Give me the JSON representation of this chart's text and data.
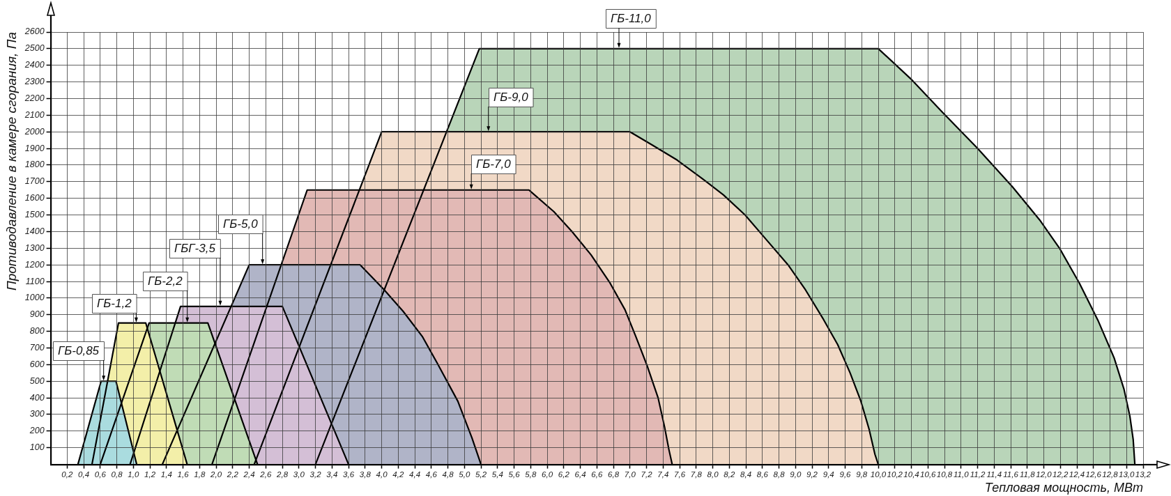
{
  "chart_data": {
    "type": "area",
    "xlabel": "Тепловая мощность, МВт",
    "ylabel": "Противодавление в камере сгорания, Па",
    "xlim": [
      0,
      13.2
    ],
    "ylim": [
      0,
      2600
    ],
    "xticks": [
      {
        "value": 0.2,
        "label": "0,2"
      },
      {
        "value": 0.4,
        "label": "0,4"
      },
      {
        "value": 0.6,
        "label": "0,6"
      },
      {
        "value": 0.8,
        "label": "0,8"
      },
      {
        "value": 1,
        "label": "1,0"
      },
      {
        "value": 1.2,
        "label": "1,2"
      },
      {
        "value": 1.4,
        "label": "1,4"
      },
      {
        "value": 1.6,
        "label": "1,6"
      },
      {
        "value": 1.8,
        "label": "1,8"
      },
      {
        "value": 2,
        "label": "2,0"
      },
      {
        "value": 2.2,
        "label": "2,2"
      },
      {
        "value": 2.4,
        "label": "2,4"
      },
      {
        "value": 2.6,
        "label": "2,6"
      },
      {
        "value": 2.8,
        "label": "2,8"
      },
      {
        "value": 3,
        "label": "3,0"
      },
      {
        "value": 3.2,
        "label": "3,2"
      },
      {
        "value": 3.4,
        "label": "3,4"
      },
      {
        "value": 3.6,
        "label": "3,6"
      },
      {
        "value": 3.8,
        "label": "3,8"
      },
      {
        "value": 4,
        "label": "4,0"
      },
      {
        "value": 4.2,
        "label": "4,2"
      },
      {
        "value": 4.4,
        "label": "4,4"
      },
      {
        "value": 4.6,
        "label": "4,6"
      },
      {
        "value": 4.8,
        "label": "4,8"
      },
      {
        "value": 5,
        "label": "5,0"
      },
      {
        "value": 5.2,
        "label": "5,2"
      },
      {
        "value": 5.4,
        "label": "5,4"
      },
      {
        "value": 5.6,
        "label": "5,6"
      },
      {
        "value": 5.8,
        "label": "5,8"
      },
      {
        "value": 6,
        "label": "6,0"
      },
      {
        "value": 6.2,
        "label": "6,2"
      },
      {
        "value": 6.4,
        "label": "6,4"
      },
      {
        "value": 6.6,
        "label": "6,6"
      },
      {
        "value": 6.8,
        "label": "6,8"
      },
      {
        "value": 7,
        "label": "7,0"
      },
      {
        "value": 7.2,
        "label": "7,2"
      },
      {
        "value": 7.4,
        "label": "7,4"
      },
      {
        "value": 7.6,
        "label": "7,6"
      },
      {
        "value": 7.8,
        "label": "7,8"
      },
      {
        "value": 8,
        "label": "8,0"
      },
      {
        "value": 8.2,
        "label": "8,2"
      },
      {
        "value": 8.4,
        "label": "8,4"
      },
      {
        "value": 8.6,
        "label": "8,6"
      },
      {
        "value": 8.8,
        "label": "8,8"
      },
      {
        "value": 9,
        "label": "9,0"
      },
      {
        "value": 9.2,
        "label": "9,2"
      },
      {
        "value": 9.4,
        "label": "9,4"
      },
      {
        "value": 9.6,
        "label": "9,6"
      },
      {
        "value": 9.8,
        "label": "9,8"
      },
      {
        "value": 10,
        "label": "10,0"
      },
      {
        "value": 10.2,
        "label": "10,2"
      },
      {
        "value": 10.4,
        "label": "10,4"
      },
      {
        "value": 10.6,
        "label": "10,6"
      },
      {
        "value": 10.8,
        "label": "10,8"
      },
      {
        "value": 11,
        "label": "11,0"
      },
      {
        "value": 11.2,
        "label": "11,2"
      },
      {
        "value": 11.4,
        "label": "11,4"
      },
      {
        "value": 11.6,
        "label": "11,6"
      },
      {
        "value": 11.8,
        "label": "11,8"
      },
      {
        "value": 12,
        "label": "12,0"
      },
      {
        "value": 12.2,
        "label": "12,2"
      },
      {
        "value": 12.4,
        "label": "12,4"
      },
      {
        "value": 12.6,
        "label": "12,6"
      },
      {
        "value": 12.8,
        "label": "12,8"
      },
      {
        "value": 13,
        "label": "13,0"
      },
      {
        "value": 13.2,
        "label": "13,2"
      }
    ],
    "yticks": [
      100,
      200,
      300,
      400,
      500,
      600,
      700,
      800,
      900,
      1000,
      1100,
      1200,
      1300,
      1400,
      1500,
      1600,
      1700,
      1800,
      1900,
      2000,
      2100,
      2200,
      2300,
      2400,
      2500,
      2600
    ],
    "grid": true,
    "series": [
      {
        "name": "ГБ-0,85",
        "color": "#aadcdf",
        "x": [
          0.33,
          0.61,
          0.79,
          1.04
        ],
        "values": [
          0,
          500,
          500,
          0
        ]
      },
      {
        "name": "ГБ-1,2",
        "color": "#f3efa9",
        "x": [
          0.5,
          0.82,
          1.15,
          1.65
        ],
        "values": [
          0,
          850,
          850,
          0
        ]
      },
      {
        "name": "ГБ-2,2",
        "color": "#c0dcb6",
        "x": [
          0.6,
          1.19,
          1.9,
          2.5
        ],
        "values": [
          0,
          850,
          850,
          0
        ]
      },
      {
        "name": "ГБГ-3,5",
        "color": "#d4bfd6",
        "x": [
          0.96,
          1.57,
          2.8,
          3.6
        ],
        "values": [
          0,
          950,
          950,
          0
        ]
      },
      {
        "name": "ГБ-5,0",
        "color": "#b0b4c8",
        "x": [
          1.35,
          2.4,
          3.74,
          4.03,
          4.26,
          4.49,
          4.67,
          4.92,
          5.09,
          5.2
        ],
        "values": [
          0,
          1200,
          1200,
          1050,
          920,
          770,
          610,
          380,
          160,
          0
        ]
      },
      {
        "name": "ГБ-7,0",
        "color": "#e2b9b5",
        "x": [
          1.95,
          3.1,
          5.78,
          6.08,
          6.3,
          6.53,
          6.76,
          6.94,
          7.07,
          7.21,
          7.34,
          7.42,
          7.47,
          7.51
        ],
        "values": [
          0,
          1650,
          1650,
          1520,
          1400,
          1260,
          1090,
          930,
          770,
          590,
          400,
          220,
          90,
          0
        ]
      },
      {
        "name": "ГБ-9,0",
        "color": "#f1d9c6",
        "x": [
          2.46,
          4,
          7,
          7.27,
          7.57,
          7.87,
          8.13,
          8.39,
          8.65,
          8.91,
          9.12,
          9.34,
          9.51,
          9.66,
          9.79,
          9.89,
          9.96,
          10
        ],
        "values": [
          0,
          2000,
          2000,
          1920,
          1830,
          1720,
          1620,
          1500,
          1350,
          1200,
          1050,
          870,
          720,
          550,
          380,
          210,
          60,
          0
        ]
      },
      {
        "name": "ГБ-11,0",
        "color": "#b9d5b9",
        "x": [
          3.2,
          5.18,
          10,
          10.39,
          10.77,
          11.2,
          11.62,
          11.95,
          12.19,
          12.43,
          12.66,
          12.85,
          12.97,
          13.04,
          13.08,
          13.1
        ],
        "values": [
          0,
          2500,
          2500,
          2320,
          2120,
          1900,
          1670,
          1470,
          1300,
          1090,
          860,
          640,
          450,
          290,
          150,
          0
        ]
      }
    ]
  }
}
